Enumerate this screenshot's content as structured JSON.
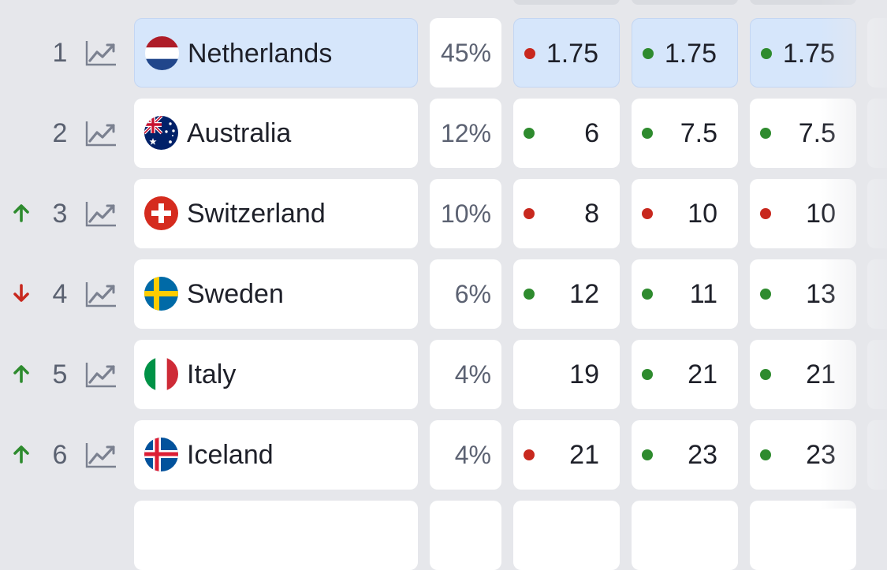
{
  "colors": {
    "up": "#2e8b2e",
    "down": "#c8281e",
    "dot_green": "#2e8b2e",
    "dot_red": "#c8281e",
    "highlight": "#d6e6fb"
  },
  "icons": {
    "row_chart": "trend-chart-icon",
    "up": "arrow-up-icon",
    "down": "arrow-down-icon"
  },
  "rows": [
    {
      "rank": "1",
      "trend": "none",
      "country": "Netherlands",
      "flag": "netherlands-flag-icon",
      "pct": "45%",
      "highlighted": true,
      "odds": [
        {
          "value": "1.75",
          "dot": "red"
        },
        {
          "value": "1.75",
          "dot": "green"
        },
        {
          "value": "1.75",
          "dot": "green"
        }
      ]
    },
    {
      "rank": "2",
      "trend": "none",
      "country": "Australia",
      "flag": "australia-flag-icon",
      "pct": "12%",
      "highlighted": false,
      "odds": [
        {
          "value": "6",
          "dot": "green"
        },
        {
          "value": "7.5",
          "dot": "green"
        },
        {
          "value": "7.5",
          "dot": "green"
        }
      ]
    },
    {
      "rank": "3",
      "trend": "up",
      "country": "Switzerland",
      "flag": "switzerland-flag-icon",
      "pct": "10%",
      "highlighted": false,
      "odds": [
        {
          "value": "8",
          "dot": "red"
        },
        {
          "value": "10",
          "dot": "red"
        },
        {
          "value": "10",
          "dot": "red"
        }
      ]
    },
    {
      "rank": "4",
      "trend": "down",
      "country": "Sweden",
      "flag": "sweden-flag-icon",
      "pct": "6%",
      "highlighted": false,
      "odds": [
        {
          "value": "12",
          "dot": "green"
        },
        {
          "value": "11",
          "dot": "green"
        },
        {
          "value": "13",
          "dot": "green"
        }
      ]
    },
    {
      "rank": "5",
      "trend": "up",
      "country": "Italy",
      "flag": "italy-flag-icon",
      "pct": "4%",
      "highlighted": false,
      "odds": [
        {
          "value": "19",
          "dot": "none"
        },
        {
          "value": "21",
          "dot": "green"
        },
        {
          "value": "21",
          "dot": "green"
        }
      ]
    },
    {
      "rank": "6",
      "trend": "up",
      "country": "Iceland",
      "flag": "iceland-flag-icon",
      "pct": "4%",
      "highlighted": false,
      "odds": [
        {
          "value": "21",
          "dot": "red"
        },
        {
          "value": "23",
          "dot": "green"
        },
        {
          "value": "23",
          "dot": "green"
        }
      ]
    }
  ]
}
